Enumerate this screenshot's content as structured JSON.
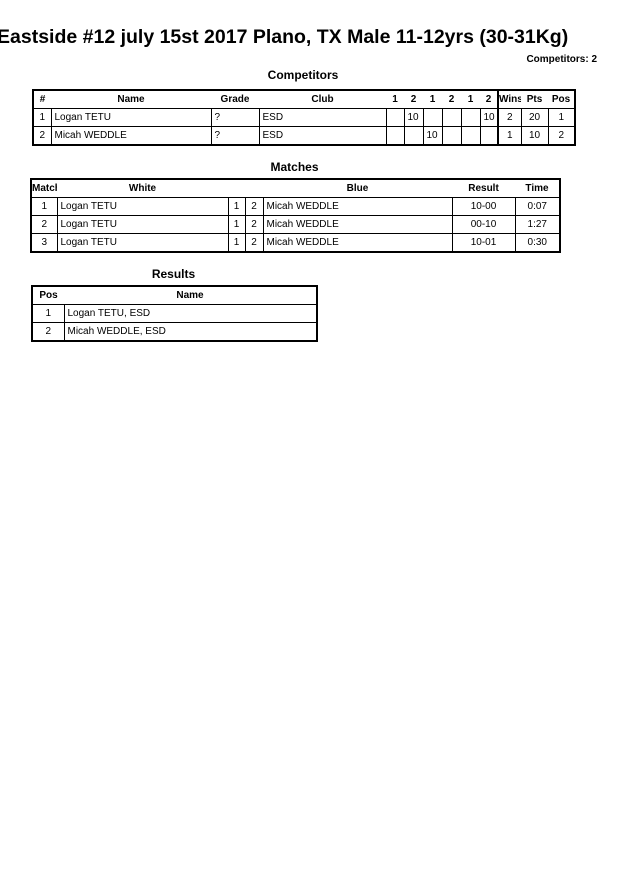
{
  "title": "Eastside #12  july 15st 2017  Plano, TX   Male 11-12yrs (30-31Kg)",
  "competitors_count": "Competitors: 2",
  "competitors": {
    "heading": "Competitors",
    "columns": [
      "#",
      "Name",
      "Grade",
      "Club",
      "1",
      "2",
      "1",
      "2",
      "1",
      "2",
      "Wins",
      "Pts",
      "Pos"
    ],
    "rows": [
      {
        "num": "1",
        "name": "Logan TETU",
        "grade": "?",
        "club": "ESD",
        "scores": [
          "",
          "10",
          "",
          "",
          "",
          "10"
        ],
        "wins": "2",
        "pts": "20",
        "pos": "1"
      },
      {
        "num": "2",
        "name": "Micah WEDDLE",
        "grade": "?",
        "club": "ESD",
        "scores": [
          "",
          "",
          "10",
          "",
          "",
          ""
        ],
        "wins": "1",
        "pts": "10",
        "pos": "2"
      }
    ]
  },
  "matches": {
    "heading": "Matches",
    "columns": [
      "Match",
      "White",
      "Blue",
      "Result",
      "Time"
    ],
    "rows": [
      {
        "num": "1",
        "white": "Logan TETU",
        "w": "1",
        "b": "2",
        "blue": "Micah WEDDLE",
        "result": "10-00",
        "time": "0:07"
      },
      {
        "num": "2",
        "white": "Logan TETU",
        "w": "1",
        "b": "2",
        "blue": "Micah WEDDLE",
        "result": "00-10",
        "time": "1:27"
      },
      {
        "num": "3",
        "white": "Logan TETU",
        "w": "1",
        "b": "2",
        "blue": "Micah WEDDLE",
        "result": "10-01",
        "time": "0:30"
      }
    ]
  },
  "results": {
    "heading": "Results",
    "columns": [
      "Pos",
      "Name"
    ],
    "rows": [
      {
        "pos": "1",
        "name": "Logan TETU, ESD"
      },
      {
        "pos": "2",
        "name": "Micah WEDDLE, ESD"
      }
    ]
  }
}
